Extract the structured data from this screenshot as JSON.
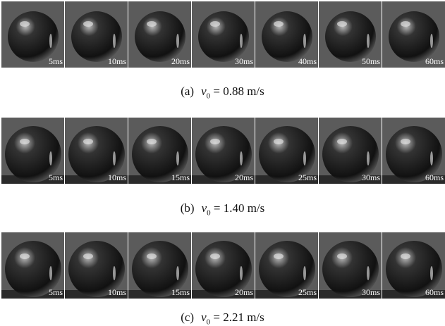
{
  "figure": {
    "rows": [
      {
        "frames": [
          "5ms",
          "10ms",
          "20ms",
          "30ms",
          "40ms",
          "50ms",
          "60ms"
        ],
        "caption": {
          "label": "(a)",
          "symbol": "v",
          "subscript": "0",
          "rest": "= 0.88 m/s"
        }
      },
      {
        "frames": [
          "5ms",
          "10ms",
          "15ms",
          "20ms",
          "25ms",
          "30ms",
          "60ms"
        ],
        "caption": {
          "label": "(b)",
          "symbol": "v",
          "subscript": "0",
          "rest": "= 1.40 m/s"
        }
      },
      {
        "frames": [
          "5ms",
          "10ms",
          "15ms",
          "20ms",
          "25ms",
          "30ms",
          "60ms"
        ],
        "caption": {
          "label": "(c)",
          "symbol": "v",
          "subscript": "0",
          "rest": "= 2.21 m/s"
        }
      }
    ]
  }
}
